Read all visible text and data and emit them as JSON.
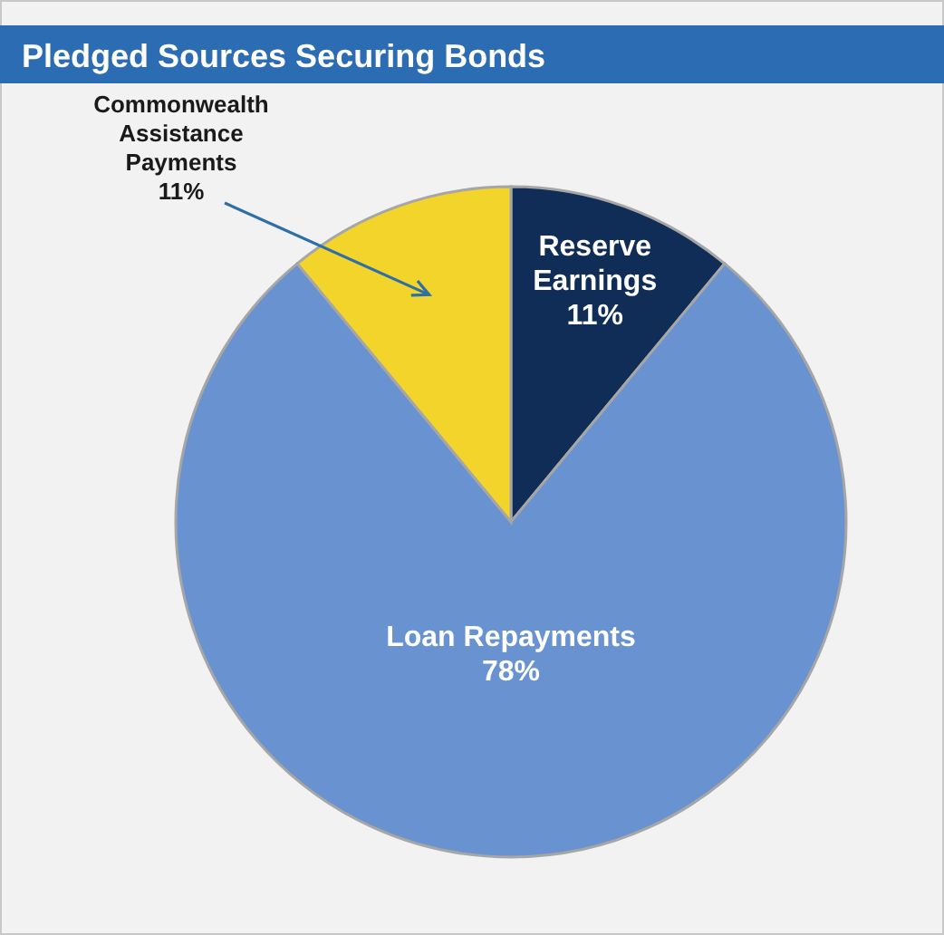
{
  "chart_data": {
    "type": "pie",
    "title": "Pledged Sources Securing Bonds",
    "categories": [
      "Reserve Earnings",
      "Loan Repayments",
      "Commonwealth Assistance Payments"
    ],
    "values": [
      11,
      78,
      11
    ],
    "value_labels": [
      "11%",
      "78%",
      "11%"
    ],
    "colors": [
      "#0f2d57",
      "#6893d0",
      "#f3d42a"
    ]
  }
}
